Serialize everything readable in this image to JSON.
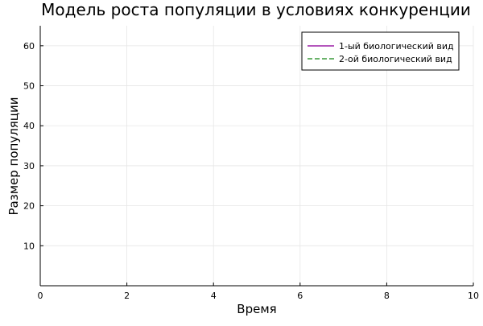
{
  "chart_data": {
    "type": "line",
    "title": "Модель роста популяции в условиях конкуренции",
    "xlabel": "Время",
    "ylabel": "Размер популяции",
    "xlim": [
      0,
      10
    ],
    "ylim": [
      0,
      65
    ],
    "xticks": [
      "0",
      "2",
      "4",
      "6",
      "8",
      "10"
    ],
    "yticks": [
      "10",
      "20",
      "30",
      "40",
      "50",
      "60"
    ],
    "grid": true,
    "legend_position": "top-right",
    "series": [
      {
        "name": "1-ый биологический вид",
        "color": "#9b1fa6",
        "dash": "solid",
        "x": [],
        "y": []
      },
      {
        "name": "2-ой биологический вид",
        "color": "#3a9a3a",
        "dash": "dashed",
        "x": [],
        "y": []
      }
    ]
  }
}
